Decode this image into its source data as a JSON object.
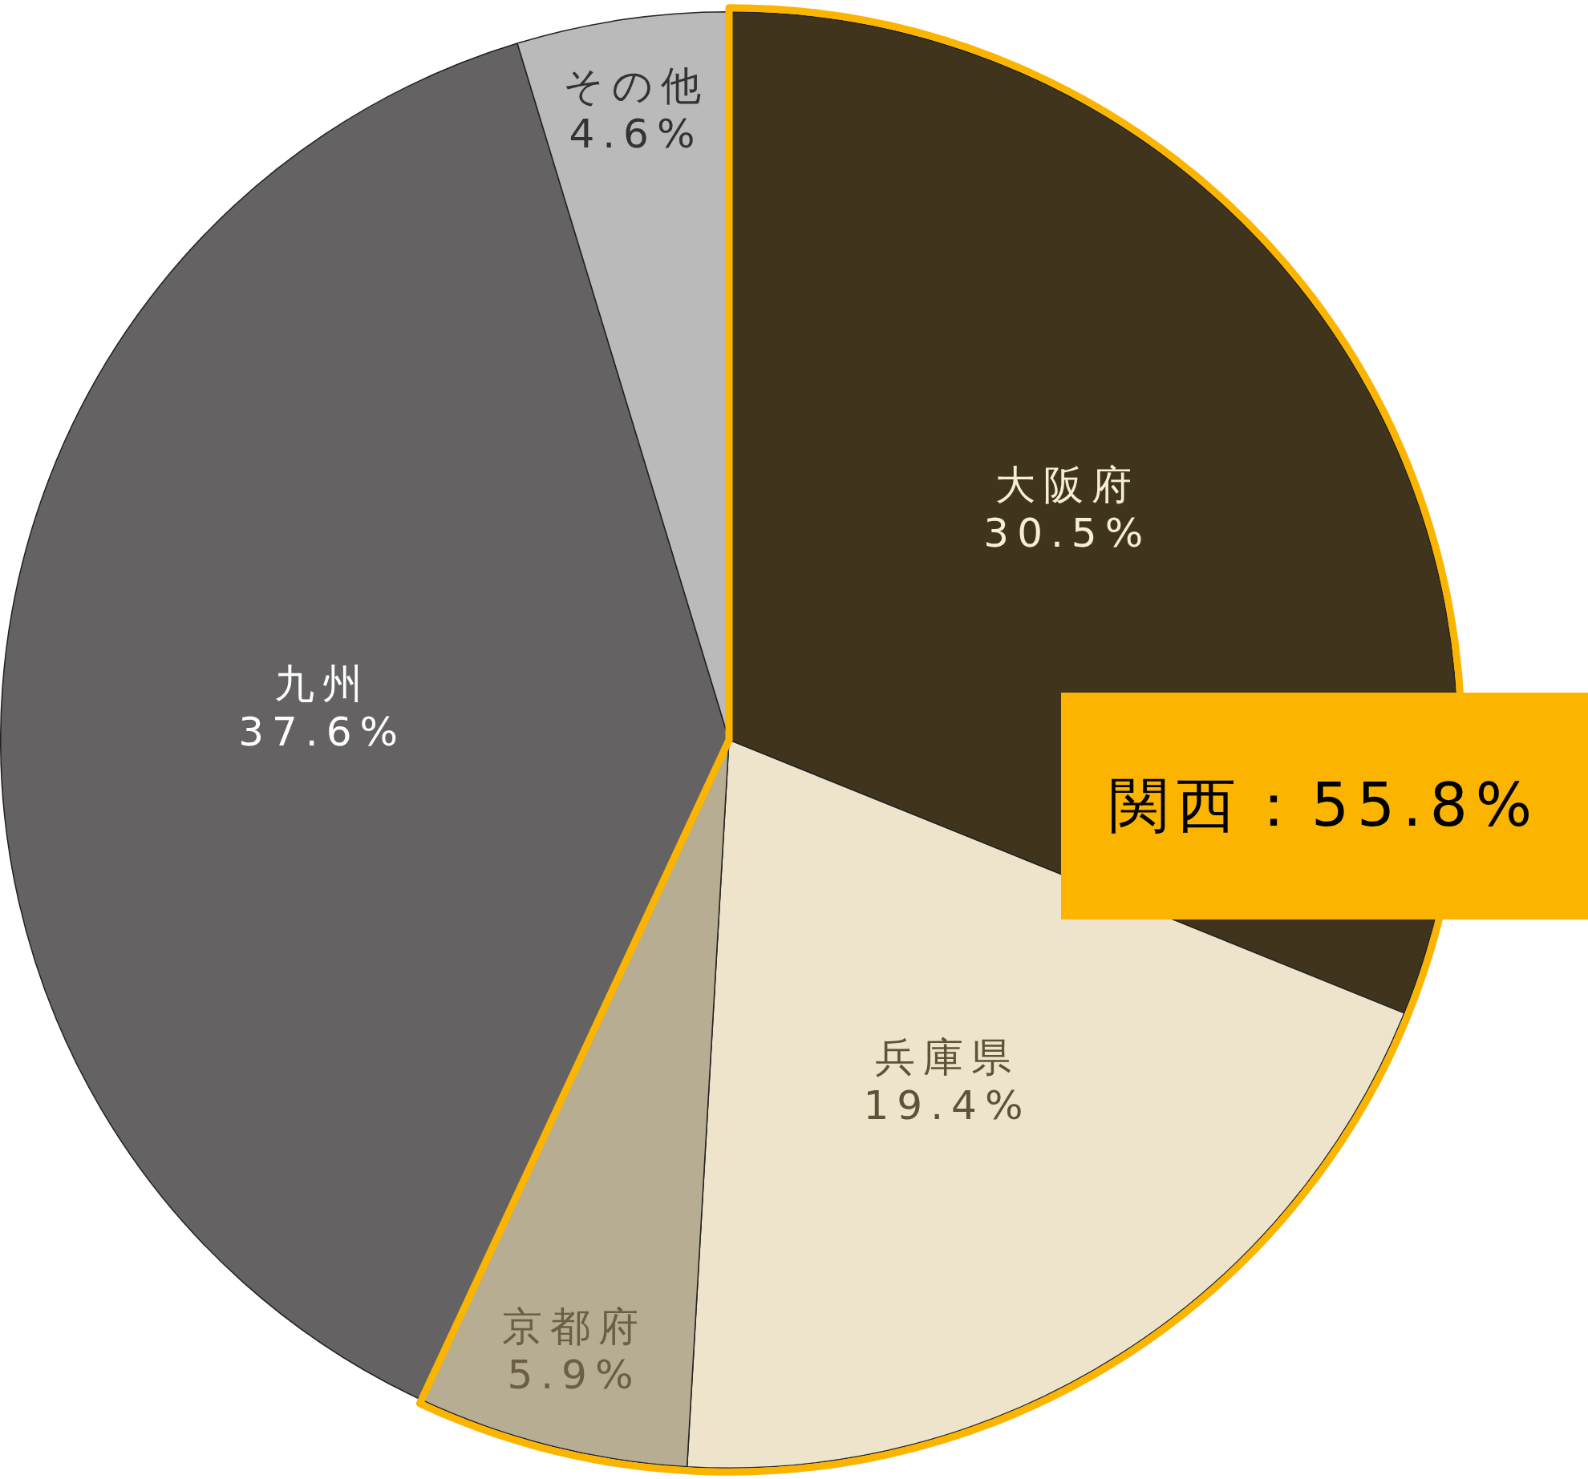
{
  "chart_data": {
    "type": "pie",
    "categories": [
      "大阪府",
      "兵庫県",
      "京都府",
      "九州",
      "その他"
    ],
    "values": [
      30.5,
      19.4,
      5.9,
      37.6,
      4.6
    ],
    "colors": [
      "#40341c",
      "#ede4cb",
      "#b6ad92",
      "#646263",
      "#b9bab9"
    ],
    "value_labels": [
      "30.5%",
      "19.4%",
      "5.9%",
      "37.6%",
      "4.6%"
    ],
    "legend": false,
    "annotations": [
      "関西：55.8%"
    ]
  }
}
